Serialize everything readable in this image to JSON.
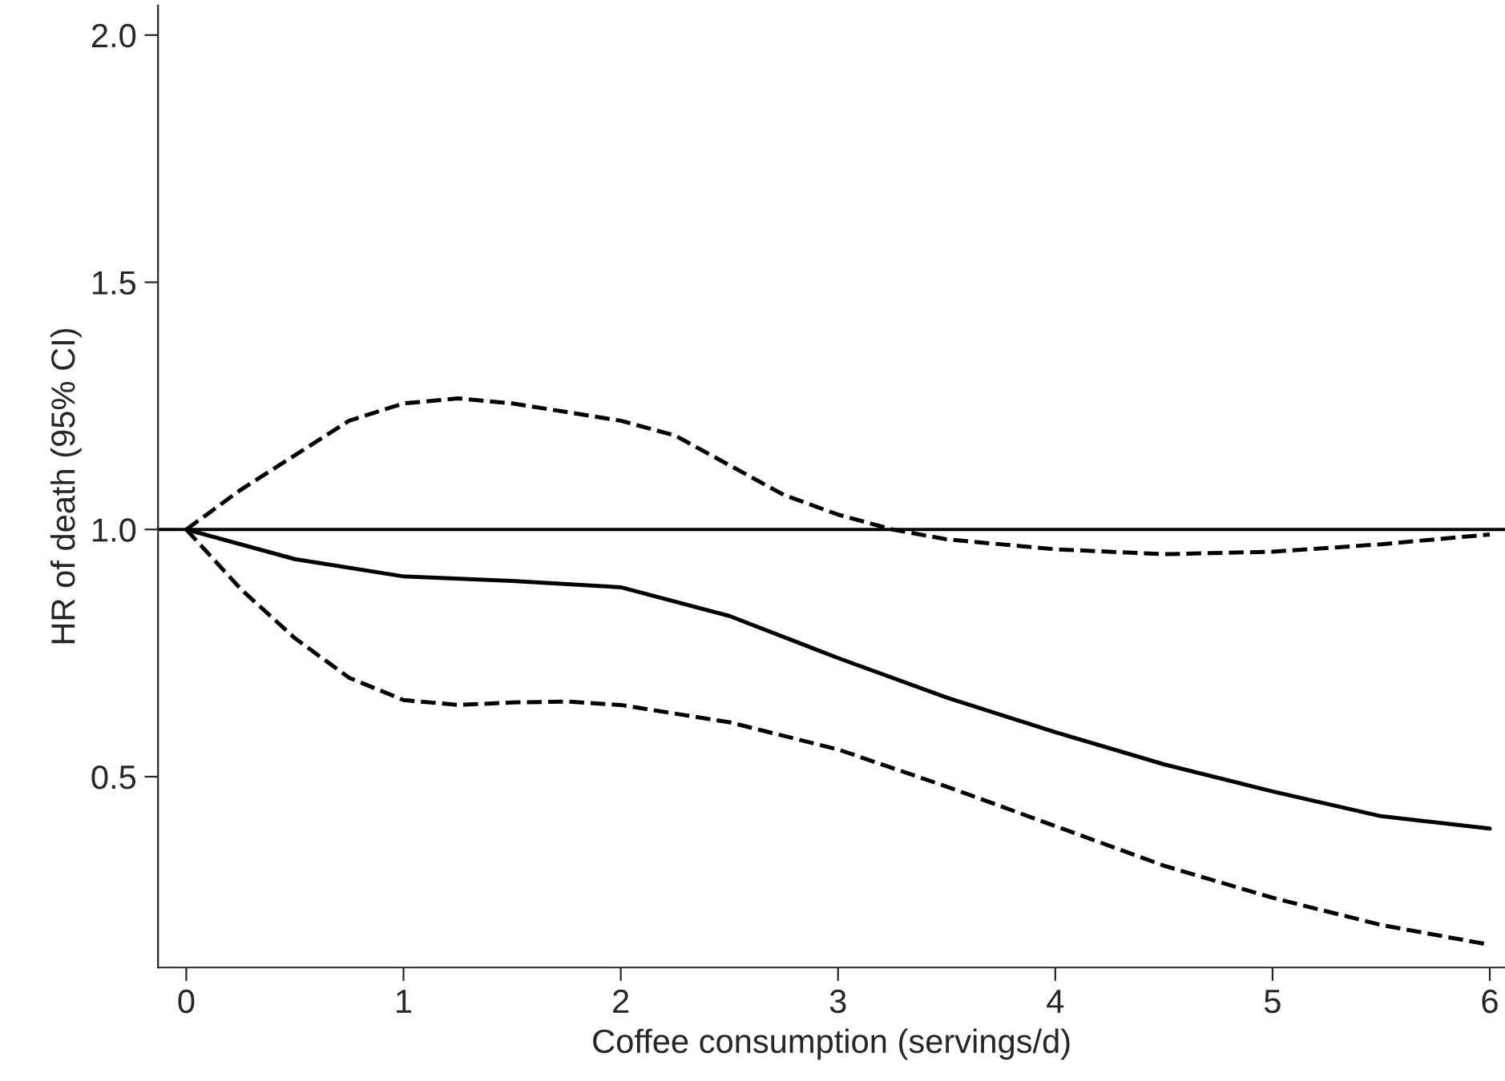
{
  "chart_data": {
    "type": "line",
    "xlabel": "Coffee consumption (servings/d)",
    "ylabel": "HR of death (95% CI)",
    "xlim": [
      -0.13,
      6.07
    ],
    "ylim": [
      0.114,
      2.06
    ],
    "xticks": [
      0,
      1,
      2,
      3,
      4,
      5,
      6
    ],
    "yticks": [
      {
        "value": 0.5,
        "label": "0.5"
      },
      {
        "value": 1.0,
        "label": "1.0"
      },
      {
        "value": 1.5,
        "label": "1.5"
      },
      {
        "value": 2.0,
        "label": "2.0"
      }
    ],
    "grid": false,
    "legend": false,
    "marker": "none",
    "ref_lines": [
      {
        "axis": "y",
        "value": 1.0,
        "label": null,
        "color": "#000000",
        "line_style": "solid"
      }
    ],
    "series": [
      {
        "color": "#000000",
        "line_style": "solid",
        "x": [
          0,
          0.5,
          1,
          1.5,
          2,
          2.5,
          3,
          3.5,
          4,
          4.5,
          5,
          5.5,
          6
        ],
        "values": [
          1.0,
          0.94,
          0.905,
          0.896,
          0.883,
          0.825,
          0.74,
          0.66,
          0.59,
          0.525,
          0.47,
          0.42,
          0.395
        ]
      },
      {
        "color": "#000000",
        "line_style": "dashed",
        "x": [
          0,
          0.25,
          0.5,
          0.75,
          1,
          1.25,
          1.5,
          2,
          2.25,
          2.5,
          2.75,
          3,
          3.25,
          3.5,
          4,
          4.5,
          5,
          5.5,
          6
        ],
        "values": [
          1.0,
          1.08,
          1.15,
          1.22,
          1.255,
          1.265,
          1.255,
          1.22,
          1.19,
          1.13,
          1.07,
          1.03,
          1.0,
          0.98,
          0.96,
          0.95,
          0.955,
          0.97,
          0.99
        ]
      },
      {
        "color": "#000000",
        "line_style": "dashed",
        "x": [
          0,
          0.25,
          0.5,
          0.75,
          1,
          1.25,
          1.5,
          1.75,
          2,
          2.5,
          3,
          3.5,
          4,
          4.5,
          5,
          5.5,
          6
        ],
        "values": [
          1.0,
          0.88,
          0.78,
          0.7,
          0.655,
          0.645,
          0.65,
          0.652,
          0.645,
          0.61,
          0.555,
          0.48,
          0.4,
          0.32,
          0.255,
          0.2,
          0.16
        ]
      }
    ]
  }
}
